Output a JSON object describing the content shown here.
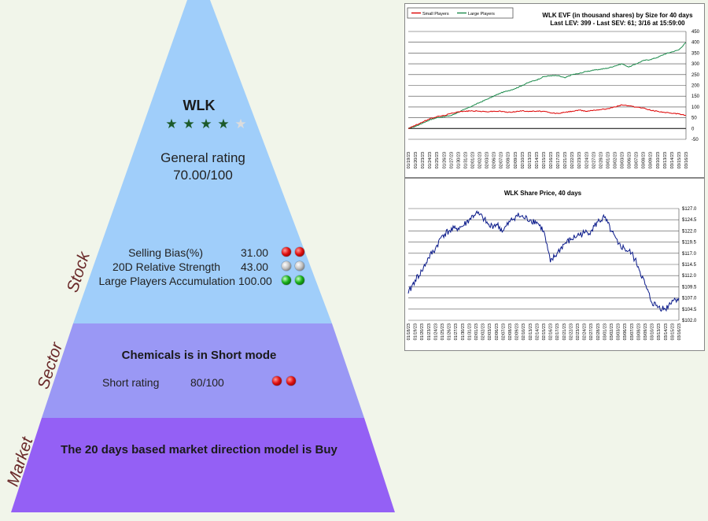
{
  "pyramid": {
    "colors": {
      "stock": "#a0cefa",
      "sector": "#9a98f5",
      "market": "#9460f5",
      "side_label": "#6a2a2a"
    },
    "stock": {
      "ticker": "WLK",
      "stars_filled": 4,
      "stars_total": 5,
      "rating_label": "General rating",
      "rating_value": "70.00/100",
      "side_label": "Stock",
      "metrics": [
        {
          "label": "Selling Bias(%)",
          "value": "31.00",
          "dots": [
            "red",
            "red"
          ]
        },
        {
          "label": "20D Relative Strength",
          "value": "43.00",
          "dots": [
            "gray",
            "gray"
          ]
        },
        {
          "label": "Large Players Accumulation",
          "value": "100.00",
          "dots": [
            "green",
            "green"
          ]
        }
      ]
    },
    "sector": {
      "side_label": "Sector",
      "title": "Chemicals is in Short mode",
      "short_rating_label": "Short rating",
      "short_rating_value": "80/100",
      "dots": [
        "red",
        "red"
      ]
    },
    "market": {
      "side_label": "Market",
      "text": "The 20 days based market direction model is Buy"
    }
  },
  "chart_data": [
    {
      "type": "line",
      "title": "WLK EVF (in thousand shares) by Size for 40 days",
      "subtitle": "Last LEV: 399 - Last SEV: 61; 3/16 at 15:59:00",
      "legend": [
        {
          "name": "Small Players",
          "color": "#dd0000"
        },
        {
          "name": "Large Players",
          "color": "#1a8a4a"
        }
      ],
      "legend_position": "top-left",
      "y_axis_side": "right",
      "ylim": [
        -50,
        450
      ],
      "yticks": [
        -50,
        0,
        50,
        100,
        150,
        200,
        250,
        300,
        350,
        400,
        450
      ],
      "grid": true,
      "x": [
        "01/19/23",
        "01/20/23",
        "01/23/23",
        "01/24/23",
        "01/25/23",
        "01/26/23",
        "01/27/23",
        "01/30/23",
        "01/31/23",
        "02/01/23",
        "02/02/23",
        "02/03/23",
        "02/06/23",
        "02/07/23",
        "02/08/23",
        "02/09/23",
        "02/10/23",
        "02/13/23",
        "02/14/23",
        "02/15/23",
        "02/16/23",
        "02/17/23",
        "02/21/23",
        "02/22/23",
        "02/23/23",
        "02/24/23",
        "02/27/23",
        "02/28/23",
        "03/01/23",
        "03/02/23",
        "03/03/23",
        "03/06/23",
        "03/07/23",
        "03/08/23",
        "03/09/23",
        "03/10/23",
        "03/13/23",
        "03/14/23",
        "03/15/23",
        "03/16/23"
      ],
      "series": [
        {
          "name": "Large Players",
          "color": "#1a8a4a",
          "values": [
            0,
            10,
            25,
            40,
            50,
            55,
            60,
            75,
            90,
            105,
            120,
            135,
            150,
            165,
            175,
            185,
            200,
            215,
            225,
            240,
            245,
            245,
            235,
            250,
            255,
            265,
            270,
            275,
            280,
            290,
            300,
            285,
            300,
            315,
            320,
            330,
            345,
            355,
            365,
            399
          ]
        },
        {
          "name": "Small Players",
          "color": "#dd0000",
          "values": [
            0,
            15,
            30,
            45,
            55,
            60,
            70,
            78,
            80,
            82,
            80,
            78,
            80,
            80,
            75,
            78,
            82,
            80,
            80,
            80,
            72,
            70,
            75,
            80,
            85,
            80,
            85,
            88,
            92,
            100,
            110,
            105,
            100,
            95,
            85,
            80,
            75,
            70,
            68,
            61
          ]
        }
      ]
    },
    {
      "type": "line",
      "title": "WLK Share Price, 40 days",
      "y_axis_side": "right",
      "ylim": [
        102,
        127
      ],
      "yticks": [
        "$127.0",
        "$124.5",
        "$122.0",
        "$119.5",
        "$117.0",
        "$114.5",
        "$112.0",
        "$109.5",
        "$107.0",
        "$104.5",
        "$102.0"
      ],
      "ytick_values": [
        127,
        124.5,
        122,
        119.5,
        117,
        114.5,
        112,
        109.5,
        107,
        104.5,
        102
      ],
      "grid": true,
      "x": [
        "01/18/23",
        "01/19/23",
        "01/20/23",
        "01/23/23",
        "01/24/23",
        "01/25/23",
        "01/26/23",
        "01/27/23",
        "01/30/23",
        "01/31/23",
        "02/01/23",
        "02/02/23",
        "02/03/23",
        "02/06/23",
        "02/07/23",
        "02/08/23",
        "02/09/23",
        "02/10/23",
        "02/13/23",
        "02/14/23",
        "02/15/23",
        "02/16/23",
        "02/17/23",
        "02/21/23",
        "02/22/23",
        "02/23/23",
        "02/24/23",
        "02/27/23",
        "02/28/23",
        "03/01/23",
        "03/02/23",
        "03/03/23",
        "03/06/23",
        "03/07/23",
        "03/08/23",
        "03/09/23",
        "03/10/23",
        "03/13/23",
        "03/14/23",
        "03/15/23",
        "03/16/23"
      ],
      "series": [
        {
          "name": "",
          "color": "#0a1a8a",
          "values": [
            108,
            111,
            113,
            116,
            118,
            121,
            122,
            122.5,
            123,
            124.5,
            126,
            125,
            123,
            123.5,
            122,
            124,
            125.5,
            125,
            124.5,
            124,
            122,
            115,
            117,
            119,
            120,
            121,
            121.5,
            122,
            124,
            125,
            122,
            119,
            118,
            117,
            114,
            110,
            106,
            105,
            104.5,
            106.5,
            107
          ]
        }
      ]
    }
  ]
}
